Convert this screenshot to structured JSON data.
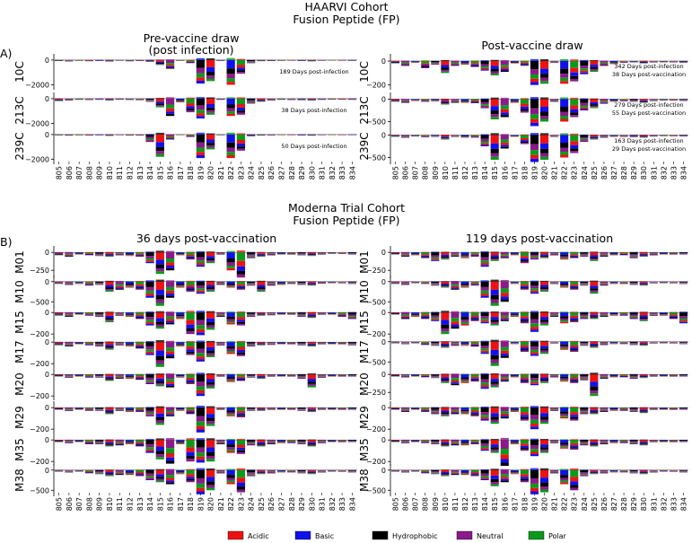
{
  "section_a": {
    "title_line1": "HAARVI Cohort",
    "title_line2": "Fusion Peptide (FP)",
    "panel_label": "A)",
    "left_title_line1": "Pre-vaccine draw",
    "left_title_line2": "(post infection)",
    "right_title": "Post-vaccine draw"
  },
  "section_b": {
    "title_line1": "Moderna Trial Cohort",
    "title_line2": "Fusion Peptide (FP)",
    "panel_label": "B)",
    "left_title": "36 days post-vaccination",
    "right_title": "119 days post-vaccination"
  },
  "legend": {
    "items": [
      {
        "label": "Acidic",
        "color": "#ee1111"
      },
      {
        "label": "Basic",
        "color": "#1010ee"
      },
      {
        "label": "Hydrophobic",
        "color": "#000000"
      },
      {
        "label": "Neutral",
        "color": "#8a1a8a"
      },
      {
        "label": "Polar",
        "color": "#0a9a1a"
      }
    ]
  },
  "chart_data": [
    {
      "type": "logo",
      "section": "A",
      "side": "left",
      "sites": [
        "805",
        "806",
        "807",
        "808",
        "809",
        "810",
        "811",
        "812",
        "813",
        "814",
        "815",
        "816",
        "817",
        "818",
        "819",
        "820",
        "821",
        "822",
        "823",
        "824",
        "825",
        "826",
        "827",
        "828",
        "829",
        "830",
        "831",
        "832",
        "833",
        "834"
      ],
      "rows": [
        {
          "id": "10C",
          "annotation": "189 Days post-infection",
          "yticks": [
            0,
            -2000
          ],
          "ylim": [
            -2400,
            500
          ],
          "values": [
            -60,
            -90,
            -40,
            -80,
            -60,
            -120,
            -30,
            -90,
            -60,
            -150,
            -400,
            -700,
            -40,
            -250,
            -1900,
            -1700,
            -40,
            -2000,
            -1100,
            -250,
            -80,
            -50,
            -40,
            -30,
            -60,
            -90,
            -30,
            -20,
            -30,
            -40
          ]
        },
        {
          "id": "213C",
          "annotation": "38 Days post-infection",
          "yticks": [
            0,
            -2000
          ],
          "ylim": [
            -2400,
            500
          ],
          "values": [
            -200,
            -150,
            -80,
            -100,
            -80,
            -150,
            -60,
            -100,
            -120,
            -250,
            -700,
            -1400,
            -300,
            -1100,
            -1600,
            -1300,
            -80,
            -1400,
            -1300,
            -400,
            -250,
            -150,
            -80,
            -100,
            -120,
            -150,
            -80,
            -60,
            -70,
            -80
          ]
        },
        {
          "id": "239C",
          "annotation": "50 Days post-infection",
          "yticks": [
            0,
            -2000
          ],
          "ylim": [
            -2400,
            500
          ],
          "values": [
            -40,
            -60,
            -40,
            -60,
            -40,
            -100,
            -20,
            -60,
            -50,
            -600,
            -1800,
            -400,
            -30,
            -200,
            -1900,
            -1200,
            -30,
            -1900,
            -1300,
            -150,
            -70,
            -40,
            -30,
            -30,
            -50,
            -80,
            -20,
            -20,
            -20,
            -20
          ]
        }
      ]
    },
    {
      "type": "logo",
      "section": "A",
      "side": "right",
      "sites": [
        "805",
        "806",
        "807",
        "808",
        "809",
        "810",
        "811",
        "812",
        "813",
        "814",
        "815",
        "816",
        "817",
        "818",
        "819",
        "820",
        "821",
        "822",
        "823",
        "824",
        "825",
        "826",
        "827",
        "828",
        "829",
        "830",
        "831",
        "832",
        "833",
        "834"
      ],
      "rows": [
        {
          "id": "10C",
          "annotation": "342 Days post-infection",
          "annotation2": "38 Days post-vaccination",
          "yticks": [
            0,
            -200
          ],
          "ylim": [
            -240,
            60
          ],
          "values": [
            -20,
            -40,
            -15,
            -60,
            -30,
            -100,
            -40,
            -30,
            -50,
            -80,
            -120,
            -90,
            -20,
            -40,
            -200,
            -190,
            -15,
            -190,
            -170,
            -110,
            -90,
            -40,
            -25,
            -15,
            -10,
            -20,
            -10,
            -10,
            -10,
            -15
          ]
        },
        {
          "id": "213C",
          "annotation": "279 Days post-infection",
          "annotation2": "55 Days post-vaccination",
          "yticks": [
            0,
            -500
          ],
          "ylim": [
            -650,
            150
          ],
          "values": [
            -60,
            -80,
            -40,
            -60,
            -50,
            -120,
            -80,
            -80,
            -90,
            -200,
            -450,
            -400,
            -80,
            -300,
            -600,
            -500,
            -60,
            -500,
            -400,
            -250,
            -200,
            -100,
            -60,
            -50,
            -60,
            -80,
            -40,
            -30,
            -30,
            -40
          ]
        },
        {
          "id": "239C",
          "annotation": "163 Days post-infection",
          "annotation2": "29 Days post-vaccination",
          "yticks": [
            0,
            -500
          ],
          "ylim": [
            -650,
            150
          ],
          "values": [
            -40,
            -60,
            -30,
            -50,
            -40,
            -100,
            -40,
            -60,
            -60,
            -250,
            -550,
            -300,
            -40,
            -200,
            -600,
            -550,
            -40,
            -500,
            -400,
            -150,
            -100,
            -60,
            -40,
            -40,
            -50,
            -60,
            -30,
            -20,
            -20,
            -30
          ]
        }
      ]
    },
    {
      "type": "logo",
      "section": "B",
      "side": "left",
      "sites": [
        "805",
        "806",
        "807",
        "808",
        "809",
        "810",
        "811",
        "812",
        "813",
        "814",
        "815",
        "816",
        "817",
        "818",
        "819",
        "820",
        "821",
        "822",
        "823",
        "824",
        "825",
        "826",
        "827",
        "828",
        "829",
        "830",
        "831",
        "832",
        "833",
        "834"
      ],
      "rows": [
        {
          "id": "M01",
          "yticks": [
            0,
            -250
          ],
          "ylim": [
            -360,
            90
          ],
          "values": [
            -40,
            -60,
            -30,
            -40,
            -50,
            -60,
            -40,
            -50,
            -60,
            -150,
            -300,
            -250,
            -40,
            -100,
            -200,
            -150,
            -30,
            -250,
            -350,
            -80,
            -60,
            -40,
            -30,
            -30,
            -40,
            -50,
            -30,
            -20,
            -20,
            -30
          ]
        },
        {
          "id": "M10",
          "yticks": [
            0,
            -500
          ],
          "ylim": [
            -650,
            150
          ],
          "values": [
            -60,
            -80,
            -60,
            -100,
            -80,
            -250,
            -200,
            -150,
            -200,
            -400,
            -600,
            -400,
            -150,
            -250,
            -300,
            -250,
            -80,
            -150,
            -200,
            -100,
            -250,
            -100,
            -80,
            -60,
            -80,
            -100,
            -50,
            -40,
            -40,
            -60
          ]
        },
        {
          "id": "M15",
          "yticks": [
            0,
            -200
          ],
          "ylim": [
            -240,
            60
          ],
          "values": [
            -30,
            -40,
            -20,
            -30,
            -40,
            -90,
            -30,
            -40,
            -60,
            -120,
            -150,
            -110,
            -60,
            -200,
            -210,
            -160,
            -40,
            -110,
            -120,
            -40,
            -30,
            -25,
            -20,
            -20,
            -40,
            -50,
            -20,
            -20,
            -40,
            -60
          ]
        },
        {
          "id": "M17",
          "yticks": [
            0,
            -200
          ],
          "ylim": [
            -240,
            60
          ],
          "values": [
            -30,
            -40,
            -20,
            -30,
            -40,
            -70,
            -30,
            -40,
            -60,
            -120,
            -230,
            -150,
            -40,
            -120,
            -180,
            -140,
            -30,
            -110,
            -130,
            -40,
            -30,
            -25,
            -20,
            -20,
            -30,
            -40,
            -20,
            -20,
            -20,
            -30
          ]
        },
        {
          "id": "M20",
          "yticks": [
            0,
            -200
          ],
          "ylim": [
            -240,
            60
          ],
          "values": [
            -20,
            -30,
            -20,
            -30,
            -30,
            -60,
            -40,
            -40,
            -50,
            -90,
            -110,
            -120,
            -30,
            -90,
            -200,
            -130,
            -20,
            -70,
            -60,
            -30,
            -40,
            -20,
            -20,
            -20,
            -40,
            -120,
            -30,
            -20,
            -20,
            -20
          ]
        },
        {
          "id": "M29",
          "yticks": [
            0,
            -200
          ],
          "ylim": [
            -240,
            60
          ],
          "values": [
            -20,
            -30,
            -20,
            -30,
            -30,
            -60,
            -30,
            -40,
            -40,
            -80,
            -160,
            -80,
            -30,
            -60,
            -230,
            -170,
            -20,
            -80,
            -90,
            -30,
            -30,
            -20,
            -20,
            -20,
            -30,
            -40,
            -20,
            -20,
            -20,
            -20
          ]
        },
        {
          "id": "M35",
          "yticks": [
            0,
            -200
          ],
          "ylim": [
            -240,
            60
          ],
          "values": [
            -20,
            -30,
            -20,
            -40,
            -40,
            -60,
            -50,
            -40,
            -60,
            -120,
            -180,
            -220,
            -40,
            -200,
            -210,
            -200,
            -40,
            -120,
            -130,
            -50,
            -60,
            -40,
            -30,
            -30,
            -40,
            -60,
            -30,
            -20,
            -20,
            -20
          ]
        },
        {
          "id": "M38",
          "yticks": [
            0,
            -500
          ],
          "ylim": [
            -650,
            150
          ],
          "values": [
            -40,
            -60,
            -40,
            -80,
            -100,
            -150,
            -120,
            -120,
            -150,
            -250,
            -300,
            -350,
            -100,
            -300,
            -600,
            -500,
            -80,
            -350,
            -550,
            -150,
            -100,
            -80,
            -60,
            -60,
            -80,
            -100,
            -60,
            -40,
            -40,
            -60
          ]
        }
      ]
    },
    {
      "type": "logo",
      "section": "B",
      "side": "right",
      "sites": [
        "805",
        "806",
        "807",
        "808",
        "809",
        "810",
        "811",
        "812",
        "813",
        "814",
        "815",
        "816",
        "817",
        "818",
        "819",
        "820",
        "821",
        "822",
        "823",
        "824",
        "825",
        "826",
        "827",
        "828",
        "829",
        "830",
        "831",
        "832",
        "833",
        "834"
      ],
      "rows": [
        {
          "id": "M01",
          "yticks": [
            0,
            -250
          ],
          "ylim": [
            -360,
            90
          ],
          "values": [
            -30,
            -60,
            -40,
            -80,
            -120,
            -100,
            -60,
            -80,
            -60,
            -200,
            -120,
            -80,
            -40,
            -150,
            -100,
            -80,
            -40,
            -100,
            -80,
            -60,
            -120,
            -60,
            -40,
            -40,
            -80,
            -60,
            -40,
            -30,
            -30,
            -30
          ]
        },
        {
          "id": "M10",
          "yticks": [
            0,
            -500
          ],
          "ylim": [
            -650,
            150
          ],
          "values": [
            -60,
            -80,
            -40,
            -60,
            -100,
            -150,
            -200,
            -150,
            -100,
            -400,
            -600,
            -500,
            -60,
            -200,
            -300,
            -250,
            -60,
            -150,
            -200,
            -100,
            -300,
            -100,
            -60,
            -60,
            -80,
            -100,
            -40,
            -40,
            -40,
            -60
          ]
        },
        {
          "id": "M15",
          "yticks": [
            0,
            -200
          ],
          "ylim": [
            -240,
            60
          ],
          "values": [
            -20,
            -60,
            -40,
            -60,
            -80,
            -200,
            -150,
            -120,
            -80,
            -100,
            -120,
            -80,
            -40,
            -100,
            -180,
            -120,
            -40,
            -100,
            -90,
            -60,
            -60,
            -40,
            -30,
            -30,
            -60,
            -80,
            -30,
            -30,
            -60,
            -100
          ]
        },
        {
          "id": "M17",
          "yticks": [
            0,
            -500
          ],
          "ylim": [
            -650,
            150
          ],
          "values": [
            -40,
            -60,
            -40,
            -80,
            -100,
            -150,
            -100,
            -100,
            -120,
            -300,
            -600,
            -400,
            -60,
            -250,
            -350,
            -300,
            -40,
            -200,
            -250,
            -100,
            -150,
            -80,
            -60,
            -60,
            -80,
            -100,
            -40,
            -40,
            -40,
            -60
          ]
        },
        {
          "id": "M20",
          "yticks": [
            0,
            -250
          ],
          "ylim": [
            -360,
            90
          ],
          "values": [
            -30,
            -40,
            -30,
            -40,
            -50,
            -120,
            -150,
            -120,
            -100,
            -200,
            -180,
            -100,
            -40,
            -120,
            -150,
            -120,
            -40,
            -100,
            -120,
            -80,
            -300,
            -60,
            -40,
            -40,
            -60,
            -50,
            -30,
            -30,
            -30,
            -30
          ]
        },
        {
          "id": "M29",
          "yticks": [
            0,
            -200
          ],
          "ylim": [
            -240,
            60
          ],
          "values": [
            -20,
            -40,
            -20,
            -40,
            -60,
            -80,
            -60,
            -60,
            -80,
            -120,
            -150,
            -100,
            -40,
            -120,
            -200,
            -150,
            -30,
            -100,
            -120,
            -60,
            -60,
            -40,
            -30,
            -30,
            -40,
            -50,
            -20,
            -20,
            -20,
            -20
          ]
        },
        {
          "id": "M35",
          "yticks": [
            0,
            -200
          ],
          "ylim": [
            -240,
            60
          ],
          "values": [
            -20,
            -30,
            -20,
            -30,
            -40,
            -60,
            -50,
            -50,
            -40,
            -100,
            -120,
            -240,
            -40,
            -100,
            -150,
            -120,
            -30,
            -80,
            -90,
            -50,
            -60,
            -40,
            -30,
            -30,
            -40,
            -50,
            -20,
            -20,
            -20,
            -20
          ]
        },
        {
          "id": "M38",
          "yticks": [
            0,
            -500
          ],
          "ylim": [
            -650,
            150
          ],
          "values": [
            -40,
            -60,
            -40,
            -80,
            -100,
            -150,
            -120,
            -120,
            -150,
            -250,
            -400,
            -300,
            -100,
            -300,
            -600,
            -550,
            -80,
            -350,
            -500,
            -150,
            -100,
            -80,
            -60,
            -60,
            -80,
            -100,
            -60,
            -40,
            -40,
            -60
          ]
        }
      ]
    }
  ]
}
